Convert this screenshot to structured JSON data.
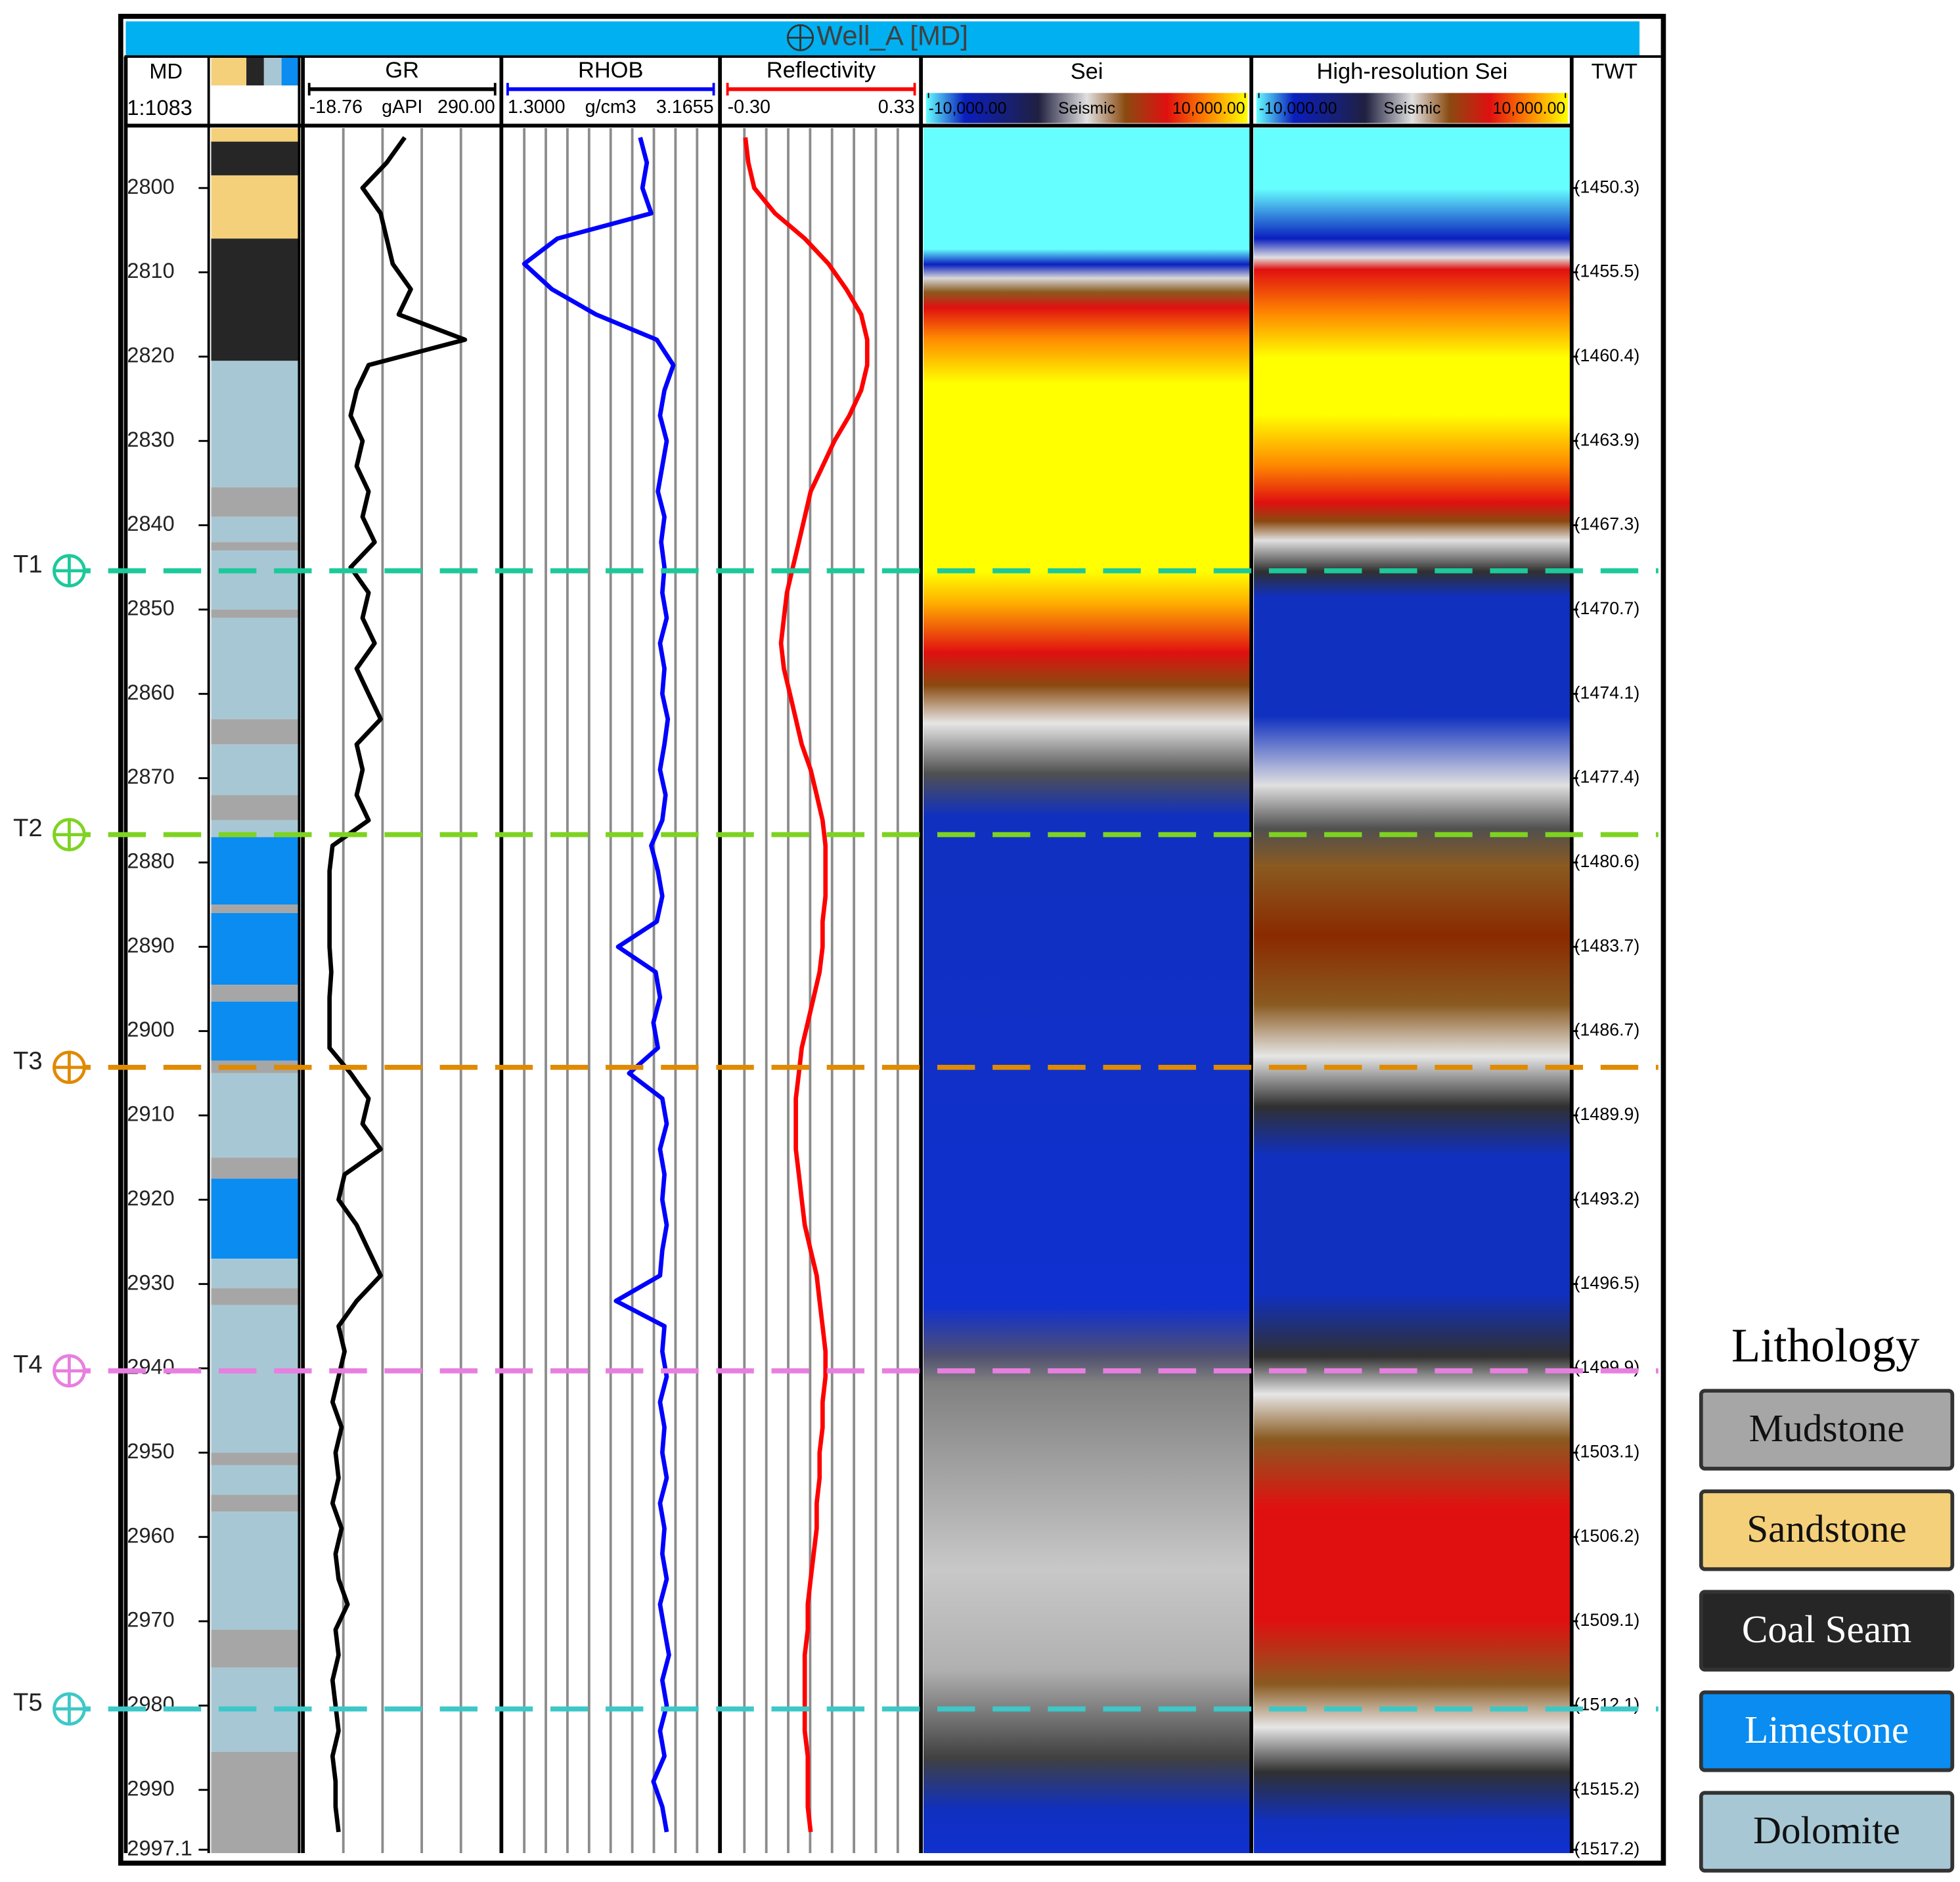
{
  "chart_data": {
    "type": "well_log",
    "title": "Well_A [MD]",
    "depth_header": "MD",
    "scale": "1:1083",
    "twt_header": "TWT",
    "ylim": [
      2792.9,
      2997.5
    ],
    "depth_ticks": [
      2800,
      2810,
      2820,
      2830,
      2840,
      2850,
      2860,
      2870,
      2880,
      2890,
      2900,
      2910,
      2920,
      2930,
      2940,
      2950,
      2960,
      2970,
      2980,
      2990,
      2997.1
    ],
    "twt_labels": [
      "(1450.3)",
      "(1455.5)",
      "(1460.4)",
      "(1463.9)",
      "(1467.3)",
      "(1470.7)",
      "(1474.1)",
      "(1477.4)",
      "(1480.6)",
      "(1483.7)",
      "(1486.7)",
      "(1489.9)",
      "(1493.2)",
      "(1496.5)",
      "(1499.9)",
      "(1503.1)",
      "(1506.2)",
      "(1509.1)",
      "(1512.1)",
      "(1515.2)",
      "(1517.2)"
    ],
    "depth": [
      2794,
      2797,
      2800,
      2803,
      2806,
      2809,
      2812,
      2815,
      2818,
      2821,
      2824,
      2827,
      2830,
      2833,
      2836,
      2839,
      2842,
      2845,
      2848,
      2851,
      2854,
      2857,
      2860,
      2863,
      2866,
      2869,
      2872,
      2875,
      2878,
      2881,
      2884,
      2887,
      2890,
      2893,
      2896,
      2899,
      2902,
      2905,
      2908,
      2911,
      2914,
      2917,
      2920,
      2923,
      2926,
      2929,
      2932,
      2935,
      2938,
      2941,
      2944,
      2947,
      2950,
      2953,
      2956,
      2959,
      2962,
      2965,
      2968,
      2971,
      2974,
      2977,
      2980,
      2983,
      2986,
      2989,
      2992,
      2995
    ],
    "curves": [
      {
        "name": "GR",
        "unit": "gAPI",
        "color": "#000000",
        "xlim": [
          -18.76,
          290
        ],
        "xticks": [
          -18.76,
          {
            "value": 290,
            "label": "290.00"
          }
        ],
        "values": [
          140,
          110,
          70,
          100,
          110,
          120,
          150,
          130,
          240,
          80,
          60,
          50,
          70,
          60,
          80,
          70,
          90,
          50,
          80,
          70,
          90,
          60,
          80,
          100,
          60,
          70,
          60,
          80,
          20,
          15,
          15,
          15,
          15,
          18,
          15,
          15,
          15,
          50,
          80,
          70,
          100,
          40,
          30,
          60,
          80,
          100,
          60,
          30,
          40,
          30,
          20,
          35,
          25,
          30,
          20,
          35,
          25,
          30,
          45,
          25,
          30,
          20,
          25,
          30,
          20,
          25,
          25,
          30
        ]
      },
      {
        "name": "RHOB",
        "unit": "g/cm3",
        "color": "#0000ff",
        "xlim": [
          1.3,
          3.1655
        ],
        "xticks": [
          {
            "value": 1.3,
            "label": "1.3000"
          },
          3.1655
        ],
        "values": [
          2.5,
          2.56,
          2.52,
          2.6,
          1.75,
          1.45,
          1.7,
          2.1,
          2.65,
          2.8,
          2.72,
          2.68,
          2.74,
          2.7,
          2.66,
          2.72,
          2.69,
          2.72,
          2.7,
          2.74,
          2.68,
          2.72,
          2.7,
          2.75,
          2.72,
          2.68,
          2.73,
          2.7,
          2.6,
          2.66,
          2.7,
          2.65,
          2.3,
          2.64,
          2.68,
          2.62,
          2.66,
          2.4,
          2.7,
          2.74,
          2.68,
          2.72,
          2.7,
          2.74,
          2.7,
          2.68,
          2.28,
          2.72,
          2.7,
          2.74,
          2.68,
          2.72,
          2.7,
          2.74,
          2.68,
          2.72,
          2.7,
          2.74,
          2.68,
          2.72,
          2.76,
          2.7,
          2.74,
          2.68,
          2.72,
          2.62,
          2.7,
          2.74
        ]
      },
      {
        "name": "Reflectivity",
        "color": "#ff0000",
        "xlim": [
          -0.3,
          0.33
        ],
        "xticks": [
          {
            "value": -0.3,
            "label": "-0.30"
          },
          0.33
        ],
        "values": [
          -0.24,
          -0.23,
          -0.21,
          -0.14,
          -0.04,
          0.04,
          0.1,
          0.15,
          0.17,
          0.17,
          0.15,
          0.11,
          0.06,
          0.02,
          -0.02,
          -0.04,
          -0.06,
          -0.08,
          -0.1,
          -0.11,
          -0.12,
          -0.11,
          -0.09,
          -0.07,
          -0.05,
          -0.02,
          0,
          0.02,
          0.03,
          0.03,
          0.03,
          0.02,
          0.02,
          0.01,
          -0.01,
          -0.03,
          -0.05,
          -0.06,
          -0.07,
          -0.07,
          -0.07,
          -0.06,
          -0.05,
          -0.04,
          -0.02,
          0,
          0.01,
          0.02,
          0.03,
          0.03,
          0.02,
          0.02,
          0.01,
          0.01,
          0,
          0,
          -0.01,
          -0.02,
          -0.03,
          -0.03,
          -0.04,
          -0.04,
          -0.04,
          -0.04,
          -0.03,
          -0.03,
          -0.03,
          -0.02
        ]
      }
    ],
    "seismic": [
      {
        "name": "Sei",
        "unit": "Seismic",
        "xlim": [
          -10000,
          10000
        ],
        "xticks": [
          {
            "value": -10000,
            "label": "-10,000.00"
          },
          {
            "value": 10000,
            "label": "10,000.00"
          }
        ]
      },
      {
        "name": "High-resolution Sei",
        "unit": "Seismic",
        "xlim": [
          -10000,
          10000
        ],
        "xticks": [
          {
            "value": -10000,
            "label": "-10,000.00"
          },
          {
            "value": 10000,
            "label": "10,000.00"
          }
        ]
      }
    ],
    "lithology": [
      {
        "top": 2792.9,
        "base": 2794.5,
        "lith": "Sandstone"
      },
      {
        "top": 2794.5,
        "base": 2798.5,
        "lith": "Coal Seam"
      },
      {
        "top": 2798.5,
        "base": 2806,
        "lith": "Sandstone"
      },
      {
        "top": 2806,
        "base": 2820.5,
        "lith": "Coal Seam"
      },
      {
        "top": 2820.5,
        "base": 2835.5,
        "lith": "Dolomite"
      },
      {
        "top": 2835.5,
        "base": 2839,
        "lith": "Mudstone"
      },
      {
        "top": 2839,
        "base": 2842,
        "lith": "Dolomite"
      },
      {
        "top": 2842,
        "base": 2843,
        "lith": "Mudstone"
      },
      {
        "top": 2843,
        "base": 2850,
        "lith": "Dolomite"
      },
      {
        "top": 2850,
        "base": 2851,
        "lith": "Mudstone"
      },
      {
        "top": 2851,
        "base": 2863,
        "lith": "Dolomite"
      },
      {
        "top": 2863,
        "base": 2866,
        "lith": "Mudstone"
      },
      {
        "top": 2866,
        "base": 2872,
        "lith": "Dolomite"
      },
      {
        "top": 2872,
        "base": 2875,
        "lith": "Mudstone"
      },
      {
        "top": 2875,
        "base": 2877,
        "lith": "Dolomite"
      },
      {
        "top": 2877,
        "base": 2885,
        "lith": "Limestone"
      },
      {
        "top": 2885,
        "base": 2886,
        "lith": "Mudstone"
      },
      {
        "top": 2886,
        "base": 2894.5,
        "lith": "Limestone"
      },
      {
        "top": 2894.5,
        "base": 2896.5,
        "lith": "Mudstone"
      },
      {
        "top": 2896.5,
        "base": 2903.5,
        "lith": "Limestone"
      },
      {
        "top": 2903.5,
        "base": 2905,
        "lith": "Mudstone"
      },
      {
        "top": 2905,
        "base": 2915,
        "lith": "Dolomite"
      },
      {
        "top": 2915,
        "base": 2917.5,
        "lith": "Mudstone"
      },
      {
        "top": 2917.5,
        "base": 2927,
        "lith": "Limestone"
      },
      {
        "top": 2927,
        "base": 2930.5,
        "lith": "Dolomite"
      },
      {
        "top": 2930.5,
        "base": 2932.5,
        "lith": "Mudstone"
      },
      {
        "top": 2932.5,
        "base": 2950,
        "lith": "Dolomite"
      },
      {
        "top": 2950,
        "base": 2951.5,
        "lith": "Mudstone"
      },
      {
        "top": 2951.5,
        "base": 2955,
        "lith": "Dolomite"
      },
      {
        "top": 2955,
        "base": 2957,
        "lith": "Mudstone"
      },
      {
        "top": 2957,
        "base": 2971,
        "lith": "Dolomite"
      },
      {
        "top": 2971,
        "base": 2975.5,
        "lith": "Mudstone"
      },
      {
        "top": 2975.5,
        "base": 2985.5,
        "lith": "Dolomite"
      },
      {
        "top": 2985.5,
        "base": 2997.5,
        "lith": "Mudstone"
      }
    ],
    "markers": [
      {
        "name": "T1",
        "depth": 2845.4,
        "color": "#1cc99a"
      },
      {
        "name": "T2",
        "depth": 2876.7,
        "color": "#7ed321"
      },
      {
        "name": "T3",
        "depth": 2904.3,
        "color": "#e08a00"
      },
      {
        "name": "T4",
        "depth": 2940.3,
        "color": "#e77fe0"
      },
      {
        "name": "T5",
        "depth": 2980.4,
        "color": "#3cc8c8"
      }
    ],
    "legend": {
      "title": "Lithology",
      "items": [
        {
          "name": "Mudstone",
          "color": "#a6a6a6"
        },
        {
          "name": "Sandstone",
          "color": "#f5d07a"
        },
        {
          "name": "Coal Seam",
          "color": "#262626"
        },
        {
          "name": "Limestone",
          "color": "#0a8cf0"
        },
        {
          "name": "Dolomite",
          "color": "#a7c7d4"
        }
      ]
    }
  }
}
